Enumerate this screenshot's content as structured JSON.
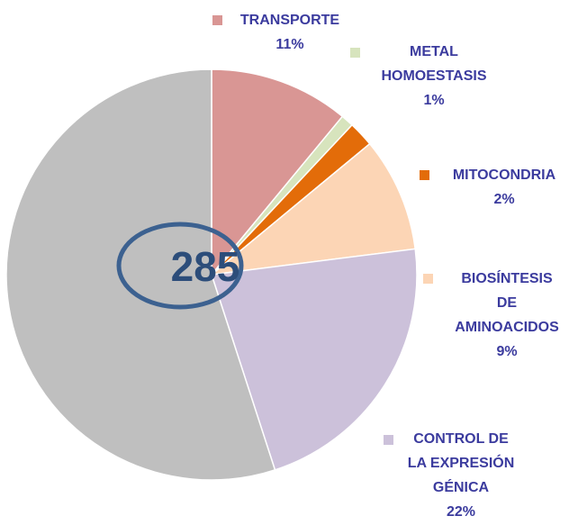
{
  "chart_data": {
    "type": "pie",
    "categories": [
      "TRANSPORTE",
      "METAL HOMOESTASIS",
      "MITOCONDRIA",
      "BIOSÍNTESIS DE AMINOACIDOS",
      "CONTROL DE LA EXPRESIÓN GÉNICA",
      null
    ],
    "values": [
      11,
      1,
      2,
      9,
      22,
      55
    ],
    "value_labels": [
      "11%",
      "1%",
      "2%",
      "9%",
      "22%",
      null
    ],
    "colors": [
      "#d99694",
      "#d7e4bd",
      "#e36c09",
      "#fcd5b5",
      "#ccc1da",
      "#bfbfbf"
    ],
    "annotation": "285"
  }
}
